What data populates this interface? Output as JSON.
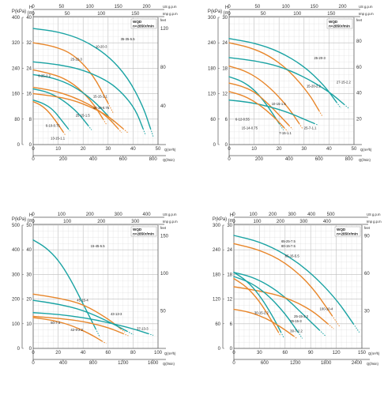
{
  "colors": {
    "teal": "#1aa3a3",
    "orange": "#e8862a",
    "grid": "#d9d9d9",
    "gridMajor": "#bdbdbd",
    "axis": "#555555"
  },
  "chart_data": [
    {
      "type": "line",
      "legend": [
        "WQD",
        "n=2850r/min"
      ],
      "left_axis": {
        "label": "P(kPa)",
        "ticks": [
          0,
          80,
          160,
          240,
          320,
          400
        ]
      },
      "h_axis": {
        "label": "H (m)",
        "ticks": [
          0,
          8,
          16,
          24,
          32,
          40
        ]
      },
      "right_axis": {
        "label": "feet",
        "ticks": [
          40,
          80,
          120
        ]
      },
      "top_axis_us": {
        "label": "US g.p.m",
        "ticks": [
          0,
          50,
          100,
          150,
          200
        ]
      },
      "top_axis_imp": {
        "label": "Imp g.p.m",
        "ticks": [
          0,
          50,
          100,
          150
        ]
      },
      "x_m3h": {
        "label": "Q(m³/h)",
        "ticks": [
          0,
          10,
          20,
          30,
          40,
          50
        ],
        "range": [
          0,
          50
        ]
      },
      "x_lmin": {
        "label": "Q(l/min)",
        "ticks": [
          0,
          200,
          400,
          600,
          800
        ]
      },
      "ylim": [
        0,
        40
      ],
      "series": [
        {
          "name": "35-35-5.5",
          "color": "teal",
          "q": [
            0,
            10,
            20,
            30,
            38,
            44,
            47
          ],
          "h": [
            36.5,
            35.5,
            33,
            28,
            21,
            12,
            5
          ]
        },
        {
          "name": "10-20-3",
          "color": "orange",
          "q": [
            0,
            8,
            16,
            24,
            30
          ],
          "h": [
            32,
            31,
            28.5,
            22,
            13
          ]
        },
        {
          "name": "25-22-3",
          "color": "teal",
          "q": [
            0,
            10,
            20,
            30,
            36,
            41,
            44
          ],
          "h": [
            26,
            25.2,
            23.5,
            20,
            16,
            11,
            5
          ]
        },
        {
          "name": "6-25-2.2",
          "color": "orange",
          "q": [
            0,
            6,
            12,
            18,
            24,
            28
          ],
          "h": [
            23.5,
            22.5,
            21,
            18,
            13,
            8
          ]
        },
        {
          "name": "15-25-2.2",
          "color": "teal",
          "q": [
            0,
            8,
            16,
            24,
            30
          ],
          "h": [
            22,
            21,
            18.5,
            14,
            9
          ]
        },
        {
          "name": "25-15-1.5",
          "color": "orange",
          "q": [
            0,
            8,
            16,
            24,
            30,
            34
          ],
          "h": [
            18,
            17,
            15,
            12,
            8.5,
            5
          ]
        },
        {
          "name": "15-15-1.1",
          "color": "teal",
          "q": [
            0,
            6,
            12,
            18,
            22
          ],
          "h": [
            17.5,
            16.5,
            14,
            10,
            6
          ]
        },
        {
          "name": "13-15-1.1",
          "color": "orange",
          "q": [
            0,
            8,
            16,
            24,
            30,
            36
          ],
          "h": [
            16,
            15.3,
            14,
            11.5,
            9,
            5
          ]
        },
        {
          "name": "10-10-0.75",
          "color": "teal",
          "q": [
            0,
            4,
            8,
            12,
            14
          ],
          "h": [
            14,
            13,
            11,
            7,
            5
          ]
        },
        {
          "name": "6-10-0.75",
          "color": "orange",
          "q": [
            0,
            3,
            6,
            9,
            12
          ],
          "h": [
            13.5,
            12.5,
            10.5,
            7.5,
            4
          ]
        }
      ],
      "annotations": [
        "35-35-5.5",
        "10-20-3",
        "25-22-3",
        "6-25-2.2",
        "25-15-1.5",
        "15-15-1.1",
        "10-10-0.75",
        "6-10-0.75",
        "13-15-1.1"
      ]
    },
    {
      "type": "line",
      "legend": [
        "WQD",
        "n=2850r/min"
      ],
      "left_axis": {
        "label": "P(kPa)",
        "ticks": [
          0,
          60,
          120,
          180,
          240,
          300
        ]
      },
      "h_axis": {
        "label": "H (m)",
        "ticks": [
          0,
          6,
          12,
          18,
          24,
          30
        ]
      },
      "right_axis": {
        "label": "feet",
        "ticks": [
          20,
          40,
          60,
          80
        ]
      },
      "top_axis_us": {
        "label": "US g.p.m",
        "ticks": [
          0,
          50,
          100,
          150,
          200
        ]
      },
      "top_axis_imp": {
        "label": "Imp g.p.m",
        "ticks": [
          0,
          50,
          100,
          150
        ]
      },
      "x_m3h": {
        "label": "Q(m³/h)",
        "ticks": [
          0,
          10,
          20,
          30,
          40,
          50
        ],
        "range": [
          0,
          50
        ]
      },
      "x_lmin": {
        "label": "Q(l/min)",
        "ticks": [
          0,
          200,
          400,
          600,
          800
        ]
      },
      "ylim": [
        0,
        30
      ],
      "series": [
        {
          "name": "25-20-3",
          "color": "teal",
          "q": [
            0,
            10,
            20,
            30,
            38,
            43
          ],
          "h": [
            25,
            24,
            22,
            18.5,
            14,
            10
          ]
        },
        {
          "name": "15-20-2.2",
          "color": "orange",
          "q": [
            0,
            8,
            16,
            24,
            32,
            36
          ],
          "h": [
            24,
            23,
            21,
            17.5,
            12,
            8
          ]
        },
        {
          "name": "27-15-2.2",
          "color": "teal",
          "q": [
            0,
            10,
            20,
            30,
            40,
            46
          ],
          "h": [
            20.5,
            19.8,
            18.5,
            16,
            12.5,
            9.5
          ]
        },
        {
          "name": "10-15-1.5",
          "color": "orange",
          "q": [
            0,
            6,
            12,
            18,
            24,
            28
          ],
          "h": [
            18.5,
            17.5,
            15.5,
            12.5,
            8.5,
            5
          ]
        },
        {
          "name": "6-12-0.55",
          "color": "teal",
          "q": [
            0,
            5,
            10,
            15,
            20
          ],
          "h": [
            16,
            15,
            13,
            9.5,
            5
          ]
        },
        {
          "name": "15-14-0.75",
          "color": "orange",
          "q": [
            0,
            5,
            10,
            15,
            20,
            24
          ],
          "h": [
            14.5,
            13.8,
            12.5,
            10,
            7,
            4.5
          ]
        },
        {
          "name": "25-7-1.1",
          "color": "teal",
          "q": [
            0,
            8,
            16,
            24,
            30,
            34
          ],
          "h": [
            10.5,
            10,
            9,
            7.5,
            6,
            5
          ]
        },
        {
          "name": "7-15-1.1",
          "color": "orange",
          "q": [
            0,
            6,
            12,
            18,
            22
          ],
          "h": [
            12.5,
            11.5,
            9.5,
            6.5,
            4
          ]
        }
      ],
      "annotations": [
        "25-20-3",
        "15-20-2.2",
        "27-15-2.2",
        "10-15-1.5",
        "6-12-0.55",
        "15-14-0.75",
        "25-7-1.1",
        "7-15-1.1"
      ]
    },
    {
      "type": "line",
      "legend": [
        "WQD",
        "n=2850r/min"
      ],
      "left_axis": {
        "label": "P(kPa)",
        "ticks": [
          0,
          100,
          200,
          300,
          400,
          500
        ]
      },
      "h_axis": {
        "label": "H (m)",
        "ticks": [
          0,
          10,
          20,
          30,
          40,
          50
        ]
      },
      "right_axis": {
        "label": "feet",
        "ticks": [
          50,
          100,
          150
        ]
      },
      "top_axis_us": {
        "label": "US g.p.m",
        "ticks": [
          0,
          100,
          200,
          300,
          400
        ]
      },
      "top_axis_imp": {
        "label": "Imp g.p.m",
        "ticks": [
          0,
          100,
          200,
          300
        ]
      },
      "x_m3h": {
        "label": "Q(m³/h)",
        "ticks": [
          0,
          20,
          40,
          60,
          80,
          100
        ],
        "range": [
          0,
          100
        ]
      },
      "x_lmin": {
        "label": "Q(l/min)",
        "ticks": [
          0,
          400,
          800,
          1200,
          1600
        ]
      },
      "ylim": [
        0,
        50
      ],
      "series": [
        {
          "name": "15-45-5.5",
          "color": "teal",
          "q": [
            0,
            10,
            20,
            30,
            40,
            50
          ],
          "h": [
            44,
            41,
            36,
            28,
            18,
            8
          ]
        },
        {
          "name": "45-15-4",
          "color": "orange",
          "q": [
            0,
            20,
            40,
            60,
            70
          ],
          "h": [
            22,
            20.5,
            18,
            12,
            8
          ]
        },
        {
          "name": "43-13-3",
          "color": "teal",
          "q": [
            0,
            20,
            40,
            60,
            75
          ],
          "h": [
            19.5,
            18,
            15.5,
            11,
            7
          ]
        },
        {
          "name": "50-7-3",
          "color": "orange",
          "q": [
            0,
            20,
            40,
            60,
            72
          ],
          "h": [
            13,
            12.2,
            11,
            8.5,
            6
          ]
        },
        {
          "name": "37-13-3",
          "color": "teal",
          "q": [
            0,
            20,
            40,
            60,
            80,
            92
          ],
          "h": [
            14.5,
            13.8,
            12.5,
            10.5,
            8,
            6
          ]
        },
        {
          "name": "42-9-2.2",
          "color": "orange",
          "q": [
            0,
            15,
            30,
            45,
            55
          ],
          "h": [
            12.5,
            11.5,
            9.5,
            6,
            3
          ]
        }
      ],
      "annotations": [
        "15-45-5.5",
        "45-15-4",
        "43-13-3",
        "50-7-3",
        "42-9-2.2",
        "37-13-3"
      ]
    },
    {
      "type": "line",
      "legend": [
        "WQD",
        "n=2850r/min"
      ],
      "left_axis": {
        "label": "P(kPa)",
        "ticks": [
          0,
          60,
          120,
          180,
          240,
          300
        ]
      },
      "h_axis": {
        "label": "H (m)",
        "ticks": [
          0,
          6,
          12,
          18,
          24,
          30
        ]
      },
      "right_axis": {
        "label": "feet",
        "ticks": [
          30,
          60,
          90
        ]
      },
      "top_axis_us": {
        "label": "US g.p.m",
        "ticks": [
          0,
          100,
          200,
          300,
          400,
          500
        ]
      },
      "top_axis_imp": {
        "label": "Imp g.p.m",
        "ticks": [
          0,
          100,
          200,
          300,
          400
        ]
      },
      "x_m3h": {
        "label": "Q(m³/h)",
        "ticks": [
          0,
          30,
          60,
          90,
          120,
          150
        ],
        "range": [
          0,
          150
        ]
      },
      "x_lmin": {
        "label": "Q(l/min)",
        "ticks": [
          0,
          600,
          1200,
          1800,
          2400
        ]
      },
      "ylim": [
        0,
        30
      ],
      "series": [
        {
          "name": "65-25-7.5",
          "color": "teal",
          "q": [
            0,
            30,
            60,
            90,
            120,
            140
          ],
          "h": [
            27.5,
            26,
            23,
            18.5,
            12,
            6
          ]
        },
        {
          "name": "80-15-7.5",
          "color": "orange",
          "q": [
            0,
            30,
            60,
            90,
            115
          ],
          "h": [
            25.5,
            24,
            21,
            15.5,
            8
          ]
        },
        {
          "name": "65-15-5.5",
          "color": "teal",
          "q": [
            0,
            20,
            40,
            60,
            80,
            100
          ],
          "h": [
            18.5,
            17.5,
            15.5,
            12.5,
            8.5,
            4.5
          ]
        },
        {
          "name": "100-10-4",
          "color": "orange",
          "q": [
            0,
            30,
            60,
            90,
            110
          ],
          "h": [
            15,
            14,
            12.5,
            9.5,
            6
          ]
        },
        {
          "name": "30-15-2.2",
          "color": "teal",
          "q": [
            0,
            15,
            30,
            45,
            55
          ],
          "h": [
            18.5,
            16.5,
            13,
            8,
            4
          ]
        },
        {
          "name": "25-15-2.2",
          "color": "orange",
          "q": [
            0,
            15,
            30,
            45,
            52
          ],
          "h": [
            17,
            15,
            11.5,
            6.5,
            4
          ]
        },
        {
          "name": "35-15-3",
          "color": "teal",
          "q": [
            0,
            20,
            40,
            60,
            75
          ],
          "h": [
            17.5,
            16,
            13,
            8.5,
            4
          ]
        },
        {
          "name": "30-7-2.2",
          "color": "orange",
          "q": [
            0,
            15,
            30,
            45,
            60,
            70
          ],
          "h": [
            9.5,
            9,
            8,
            6.5,
            4.5,
            3
          ]
        }
      ],
      "annotations": [
        "65-25-7.5",
        "80-15-7.5",
        "65-15-5.5",
        "30-15-2.2",
        "25-15-2.2",
        "35-15-3",
        "30-7-2.2",
        "100-10-4"
      ]
    }
  ]
}
